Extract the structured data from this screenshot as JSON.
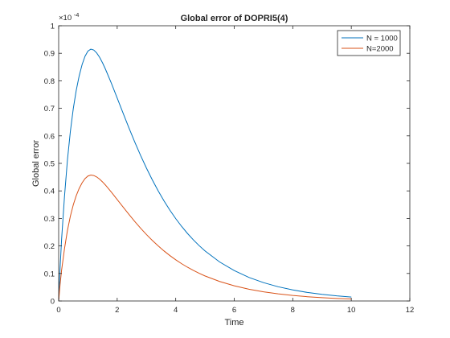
{
  "chart_data": {
    "type": "line",
    "title": "Global error of DOPRI5(4)",
    "xlabel": "Time",
    "ylabel": "Global error",
    "xlim": [
      0,
      12
    ],
    "ylim": [
      0,
      1
    ],
    "y_exponent_label": "×10",
    "y_exponent_power": "-4",
    "xticks": [
      "0",
      "2",
      "4",
      "6",
      "8",
      "10",
      "12"
    ],
    "yticks": [
      "0",
      "0.1",
      "0.2",
      "0.3",
      "0.4",
      "0.5",
      "0.6",
      "0.7",
      "0.8",
      "0.9",
      "1"
    ],
    "grid": false,
    "legend_position": "top-right",
    "series": [
      {
        "name": "N = 1000",
        "color": "#0072bd",
        "x": [
          0,
          0.05,
          0.1,
          0.2,
          0.3,
          0.4,
          0.5,
          0.6,
          0.7,
          0.8,
          0.9,
          1.0,
          1.1,
          1.2,
          1.3,
          1.4,
          1.5,
          1.6,
          1.8,
          2.0,
          2.2,
          2.4,
          2.6,
          2.8,
          3.0,
          3.2,
          3.4,
          3.6,
          3.8,
          4.0,
          4.2,
          4.4,
          4.6,
          4.8,
          5.0,
          5.5,
          6.0,
          6.5,
          7.0,
          7.5,
          8.0,
          8.5,
          9.0,
          9.5,
          10.0
        ],
        "y": [
          0,
          0.1221,
          0.2235,
          0.3805,
          0.5124,
          0.6161,
          0.699,
          0.765,
          0.8174,
          0.8585,
          0.8889,
          0.908,
          0.915,
          0.9118,
          0.9012,
          0.8852,
          0.8651,
          0.8421,
          0.7914,
          0.7374,
          0.6829,
          0.6293,
          0.5777,
          0.5288,
          0.4829,
          0.44,
          0.4003,
          0.3637,
          0.33,
          0.2993,
          0.2712,
          0.2456,
          0.2224,
          0.2012,
          0.182,
          0.1418,
          0.1104,
          0.0858,
          0.0667,
          0.0517,
          0.0401,
          0.031,
          0.024,
          0.0186,
          0.0144
        ]
      },
      {
        "name": "N=2000",
        "color": "#d95319",
        "x": [
          0,
          0.05,
          0.1,
          0.2,
          0.3,
          0.4,
          0.5,
          0.6,
          0.7,
          0.8,
          0.9,
          1.0,
          1.1,
          1.2,
          1.3,
          1.4,
          1.5,
          1.6,
          1.8,
          2.0,
          2.2,
          2.4,
          2.6,
          2.8,
          3.0,
          3.2,
          3.4,
          3.6,
          3.8,
          4.0,
          4.2,
          4.4,
          4.6,
          4.8,
          5.0,
          5.5,
          6.0,
          6.5,
          7.0,
          7.5,
          8.0,
          8.5,
          9.0,
          9.5,
          10.0
        ],
        "y": [
          0,
          0.061,
          0.1118,
          0.1903,
          0.2562,
          0.3081,
          0.3495,
          0.3825,
          0.4087,
          0.4292,
          0.4444,
          0.454,
          0.4575,
          0.4559,
          0.4506,
          0.4426,
          0.4325,
          0.4211,
          0.3957,
          0.3687,
          0.3415,
          0.3147,
          0.2889,
          0.2644,
          0.2414,
          0.22,
          0.2002,
          0.1818,
          0.165,
          0.1496,
          0.1356,
          0.1228,
          0.1112,
          0.1006,
          0.091,
          0.0709,
          0.0552,
          0.0429,
          0.0333,
          0.0259,
          0.02,
          0.0155,
          0.012,
          0.0093,
          0.0072
        ]
      }
    ]
  }
}
